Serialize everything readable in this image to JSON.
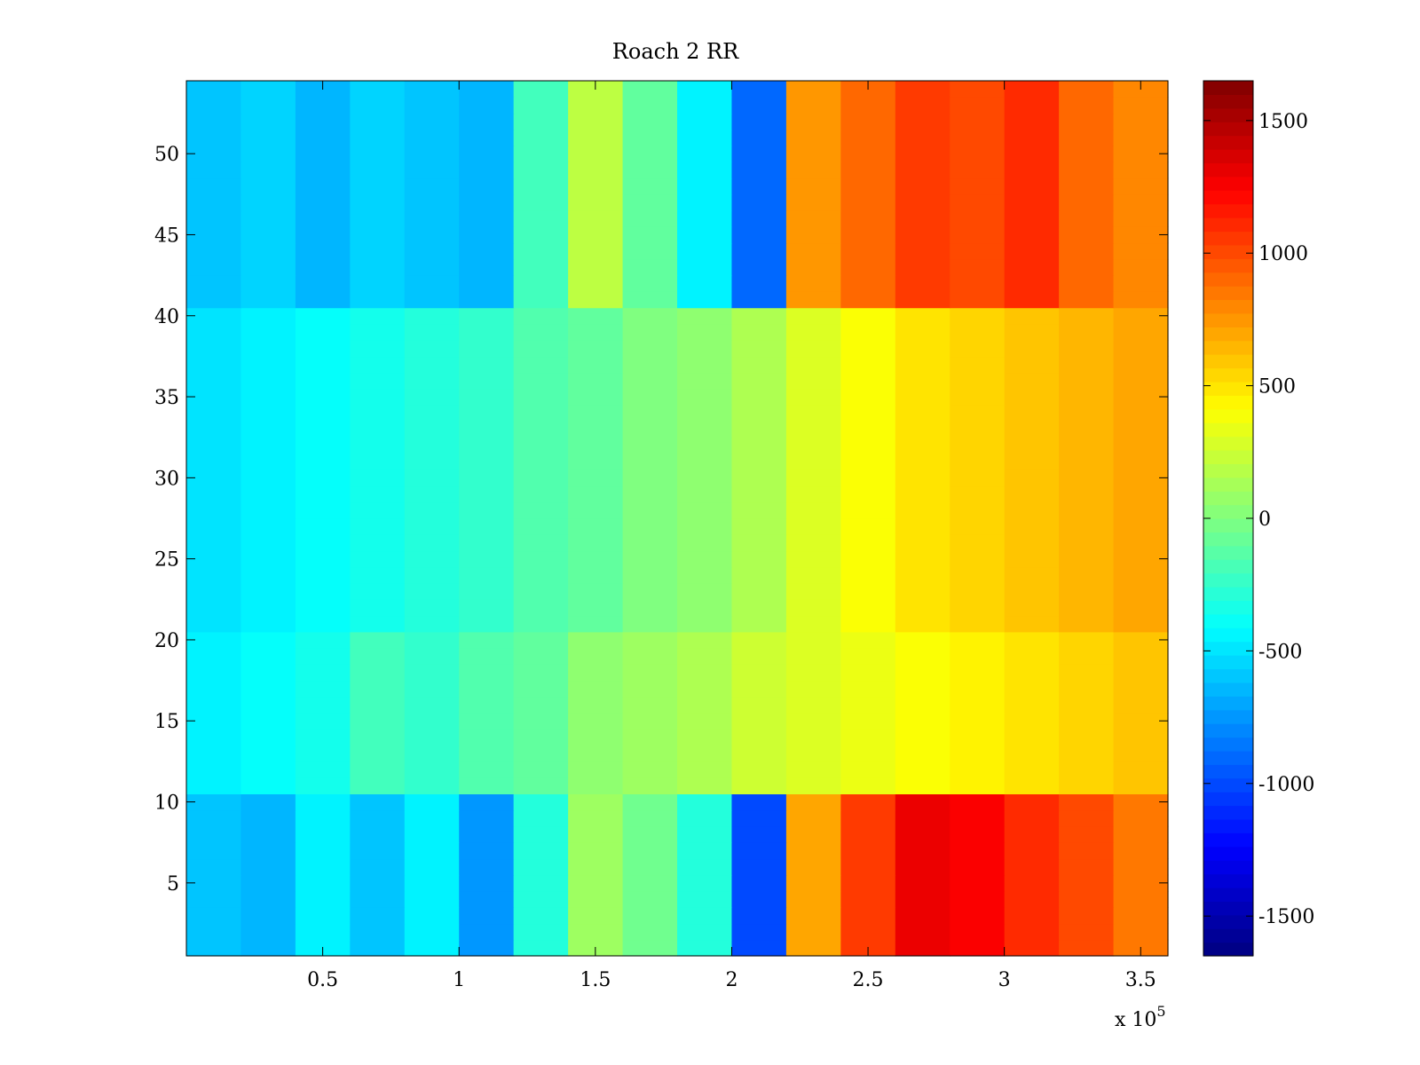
{
  "chart_data": {
    "type": "heatmap",
    "title": "Roach 2 RR",
    "xlabel": "",
    "ylabel": "",
    "x_exponent_label": "x 10",
    "x_exponent": "5",
    "xlim": [
      0,
      3.6
    ],
    "ylim": [
      0.5,
      54.5
    ],
    "x_ticks": [
      0.5,
      1,
      1.5,
      2,
      2.5,
      3,
      3.5
    ],
    "x_tick_labels": [
      "0.5",
      "1",
      "1.5",
      "2",
      "2.5",
      "3",
      "3.5"
    ],
    "y_ticks": [
      5,
      10,
      15,
      20,
      25,
      30,
      35,
      40,
      45,
      50
    ],
    "y_tick_labels": [
      "5",
      "10",
      "15",
      "20",
      "25",
      "30",
      "35",
      "40",
      "45",
      "50"
    ],
    "colorbar": {
      "colormap": "jet",
      "clim": [
        -1650,
        1650
      ],
      "ticks": [
        -1500,
        -1000,
        -500,
        0,
        500,
        1000,
        1500
      ],
      "tick_labels": [
        "-1500",
        "-1000",
        "-500",
        "0",
        "500",
        "1000",
        "1500"
      ]
    },
    "rows": 54,
    "x_bins": [
      0.1,
      0.3,
      0.5,
      0.7,
      0.9,
      1.1,
      1.3,
      1.5,
      1.7,
      1.9,
      2.1,
      2.3,
      2.5,
      2.7,
      2.9,
      3.1,
      3.3,
      3.5
    ],
    "row_groups": {
      "rows_1_to_10": [
        -600,
        -650,
        -450,
        -600,
        -450,
        -750,
        -300,
        100,
        -50,
        -300,
        -1000,
        700,
        1050,
        1300,
        1250,
        1100,
        1000,
        850
      ],
      "rows_11_to_20": [
        -450,
        -400,
        -350,
        -200,
        -250,
        -150,
        -100,
        50,
        100,
        150,
        250,
        300,
        350,
        400,
        450,
        500,
        550,
        600
      ],
      "rows_21_to_40": [
        -500,
        -450,
        -400,
        -350,
        -300,
        -250,
        -150,
        -100,
        0,
        50,
        150,
        300,
        400,
        500,
        550,
        600,
        650,
        700
      ],
      "rows_41_to_54": [
        -600,
        -550,
        -650,
        -550,
        -600,
        -650,
        -200,
        200,
        -100,
        -450,
        -900,
        750,
        900,
        1050,
        1000,
        1100,
        900,
        800
      ]
    }
  }
}
